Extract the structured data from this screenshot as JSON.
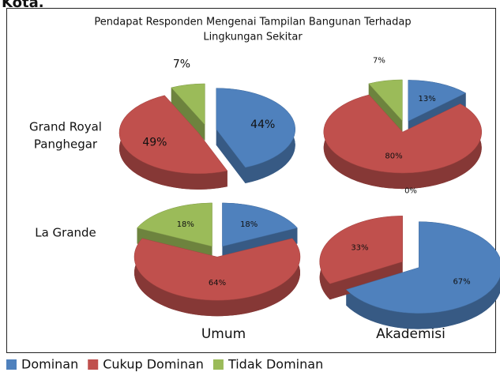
{
  "caption_fragment": "Kota.",
  "chart_data": {
    "type": "pie",
    "title": [
      "Pendapat Responden Mengenai Tampilan Bangunan Terhadap",
      "Lingkungan Sekitar"
    ],
    "categories": [
      "Dominan",
      "Cukup Dominan",
      "Tidak Dominan"
    ],
    "colors": [
      "#4f81bd",
      "#c0504d",
      "#9bbb59"
    ],
    "row_labels": [
      [
        "Grand Royal",
        "Panghegar"
      ],
      [
        "La Grande"
      ]
    ],
    "column_labels": [
      "Umum",
      "Akademisi"
    ],
    "pies": [
      {
        "values": [
          44,
          49,
          7
        ],
        "value_labels": [
          "44%",
          "49%",
          "7%"
        ]
      },
      {
        "values": [
          13,
          80,
          7
        ],
        "value_labels": [
          "13%",
          "80%",
          "7%"
        ]
      },
      {
        "values": [
          18,
          64,
          18
        ],
        "value_labels": [
          "18%",
          "64%",
          "18%"
        ]
      },
      {
        "values": [
          67,
          33,
          0
        ],
        "value_labels": [
          "67%",
          "33%",
          "0%"
        ]
      }
    ]
  }
}
